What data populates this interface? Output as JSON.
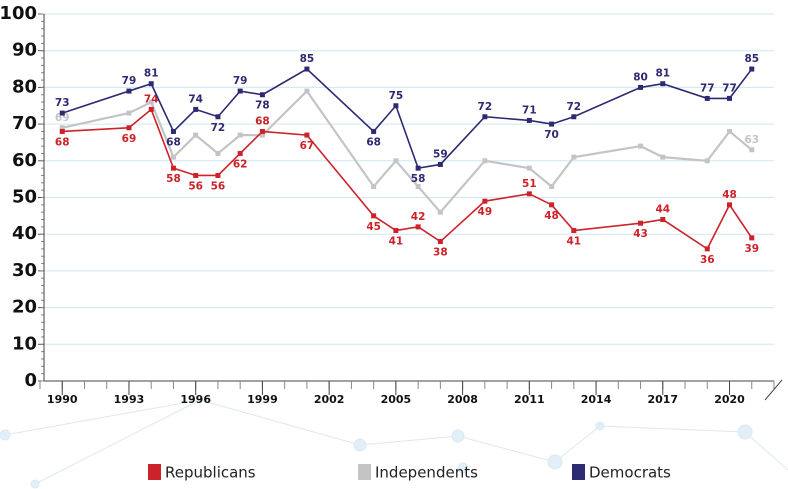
{
  "chart_data": {
    "type": "line",
    "x": [
      1990,
      1993,
      1994,
      1995,
      1996,
      1997,
      1998,
      1999,
      2001,
      2004,
      2005,
      2006,
      2007,
      2009,
      2011,
      2012,
      2013,
      2016,
      2017,
      2019,
      2020,
      2021
    ],
    "series": [
      {
        "name": "Republicans",
        "color": "#cc2229",
        "values": [
          68,
          69,
          74,
          58,
          56,
          56,
          62,
          68,
          67,
          45,
          41,
          42,
          38,
          49,
          51,
          48,
          41,
          43,
          44,
          36,
          48,
          39
        ]
      },
      {
        "name": "Independents",
        "color": "#c4c4c4",
        "values": [
          69,
          73,
          76,
          61,
          67,
          62,
          67,
          67,
          79,
          53,
          60,
          53,
          46,
          60,
          58,
          53,
          61,
          64,
          61,
          60,
          68,
          63
        ],
        "value_labels": [
          "69",
          null,
          null,
          null,
          null,
          null,
          null,
          null,
          null,
          null,
          null,
          null,
          null,
          null,
          null,
          null,
          null,
          null,
          null,
          null,
          null,
          "63"
        ]
      },
      {
        "name": "Democrats",
        "color": "#2e2a72",
        "values": [
          73,
          79,
          81,
          68,
          74,
          72,
          79,
          78,
          85,
          68,
          75,
          58,
          59,
          72,
          71,
          70,
          72,
          80,
          81,
          77,
          77,
          85
        ]
      }
    ],
    "xlim": [
      1989,
      2022
    ],
    "xticks": [
      1990,
      1993,
      1996,
      1999,
      2002,
      2005,
      2008,
      2011,
      2014,
      2017,
      2020
    ],
    "ylim": [
      0,
      100
    ],
    "yticks": [
      0,
      10,
      20,
      30,
      40,
      50,
      60,
      70,
      80,
      90,
      100
    ],
    "grid": true,
    "legend": "bottom"
  }
}
